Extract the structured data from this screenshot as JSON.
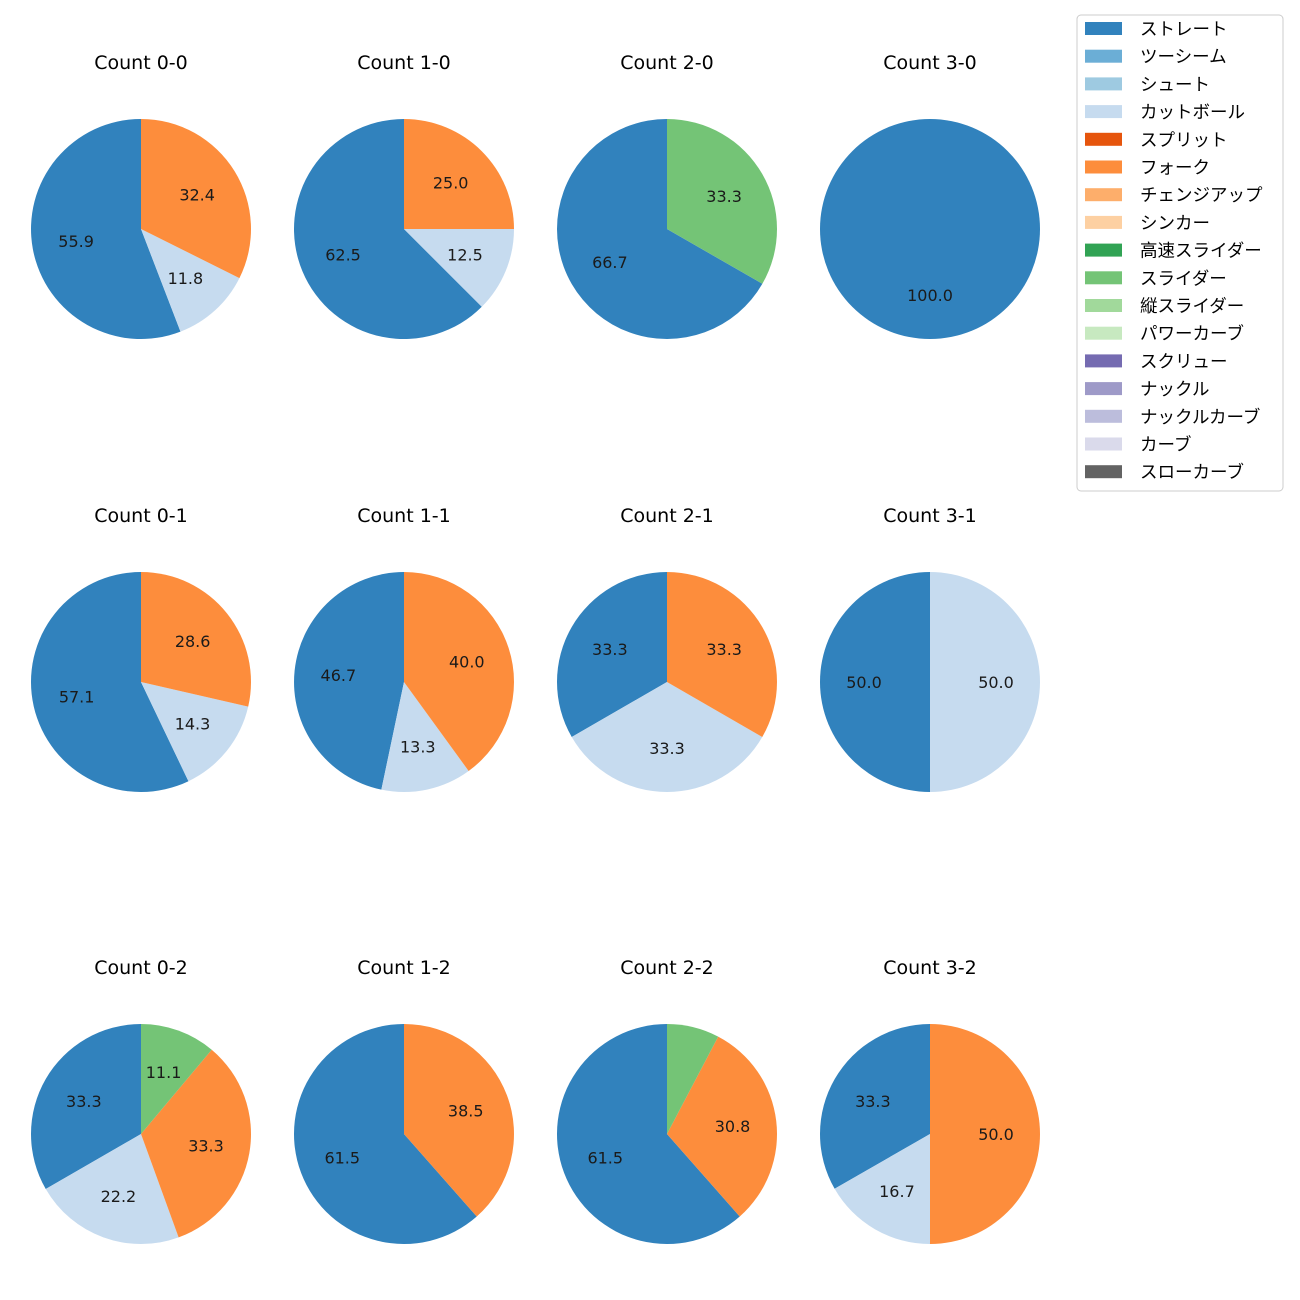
{
  "legend": {
    "items": [
      {
        "label": "ストレート",
        "color": "#3182bd"
      },
      {
        "label": "ツーシーム",
        "color": "#6baed6"
      },
      {
        "label": "シュート",
        "color": "#9ecae1"
      },
      {
        "label": "カットボール",
        "color": "#c6dbef"
      },
      {
        "label": "スプリット",
        "color": "#e6550d"
      },
      {
        "label": "フォーク",
        "color": "#fd8d3c"
      },
      {
        "label": "チェンジアップ",
        "color": "#fdae6b"
      },
      {
        "label": "シンカー",
        "color": "#fdd0a2"
      },
      {
        "label": "高速スライダー",
        "color": "#31a354"
      },
      {
        "label": "スライダー",
        "color": "#74c476"
      },
      {
        "label": "縦スライダー",
        "color": "#a1d99b"
      },
      {
        "label": "パワーカーブ",
        "color": "#c7e9c0"
      },
      {
        "label": "スクリュー",
        "color": "#756bb1"
      },
      {
        "label": "ナックル",
        "color": "#9e9ac8"
      },
      {
        "label": "ナックルカーブ",
        "color": "#bcbddc"
      },
      {
        "label": "カーブ",
        "color": "#dadaeb"
      },
      {
        "label": "スローカーブ",
        "color": "#636363"
      }
    ]
  },
  "chart_data": [
    {
      "type": "pie",
      "title": "Count 0-0",
      "slices": [
        {
          "pitch": "ストレート",
          "value": 55.9,
          "label": "55.9"
        },
        {
          "pitch": "カットボール",
          "value": 11.8,
          "label": "11.8"
        },
        {
          "pitch": "フォーク",
          "value": 32.4,
          "label": "32.4"
        }
      ]
    },
    {
      "type": "pie",
      "title": "Count 1-0",
      "slices": [
        {
          "pitch": "ストレート",
          "value": 62.5,
          "label": "62.5"
        },
        {
          "pitch": "カットボール",
          "value": 12.5,
          "label": "12.5"
        },
        {
          "pitch": "フォーク",
          "value": 25.0,
          "label": "25.0"
        }
      ]
    },
    {
      "type": "pie",
      "title": "Count 2-0",
      "slices": [
        {
          "pitch": "ストレート",
          "value": 66.7,
          "label": "66.7"
        },
        {
          "pitch": "スライダー",
          "value": 33.3,
          "label": "33.3"
        }
      ]
    },
    {
      "type": "pie",
      "title": "Count 3-0",
      "slices": [
        {
          "pitch": "ストレート",
          "value": 100.0,
          "label": "100.0"
        }
      ]
    },
    {
      "type": "pie",
      "title": "Count 0-1",
      "slices": [
        {
          "pitch": "ストレート",
          "value": 57.1,
          "label": "57.1"
        },
        {
          "pitch": "カットボール",
          "value": 14.3,
          "label": "14.3"
        },
        {
          "pitch": "フォーク",
          "value": 28.6,
          "label": "28.6"
        }
      ]
    },
    {
      "type": "pie",
      "title": "Count 1-1",
      "slices": [
        {
          "pitch": "ストレート",
          "value": 46.7,
          "label": "46.7"
        },
        {
          "pitch": "カットボール",
          "value": 13.3,
          "label": "13.3"
        },
        {
          "pitch": "フォーク",
          "value": 40.0,
          "label": "40.0"
        }
      ]
    },
    {
      "type": "pie",
      "title": "Count 2-1",
      "slices": [
        {
          "pitch": "ストレート",
          "value": 33.3,
          "label": "33.3"
        },
        {
          "pitch": "カットボール",
          "value": 33.3,
          "label": "33.3"
        },
        {
          "pitch": "フォーク",
          "value": 33.3,
          "label": "33.3"
        }
      ]
    },
    {
      "type": "pie",
      "title": "Count 3-1",
      "slices": [
        {
          "pitch": "ストレート",
          "value": 50.0,
          "label": "50.0"
        },
        {
          "pitch": "カットボール",
          "value": 50.0,
          "label": "50.0"
        }
      ]
    },
    {
      "type": "pie",
      "title": "Count 0-2",
      "slices": [
        {
          "pitch": "ストレート",
          "value": 33.3,
          "label": "33.3"
        },
        {
          "pitch": "カットボール",
          "value": 22.2,
          "label": "22.2"
        },
        {
          "pitch": "フォーク",
          "value": 33.3,
          "label": "33.3"
        },
        {
          "pitch": "スライダー",
          "value": 11.1,
          "label": "11.1"
        }
      ]
    },
    {
      "type": "pie",
      "title": "Count 1-2",
      "slices": [
        {
          "pitch": "ストレート",
          "value": 61.5,
          "label": "61.5"
        },
        {
          "pitch": "フォーク",
          "value": 38.5,
          "label": "38.5"
        }
      ]
    },
    {
      "type": "pie",
      "title": "Count 2-2",
      "slices": [
        {
          "pitch": "ストレート",
          "value": 61.5,
          "label": "61.5"
        },
        {
          "pitch": "フォーク",
          "value": 30.8,
          "label": "30.8"
        },
        {
          "pitch": "スライダー",
          "value": 7.7,
          "label": ""
        }
      ]
    },
    {
      "type": "pie",
      "title": "Count 3-2",
      "slices": [
        {
          "pitch": "ストレート",
          "value": 33.3,
          "label": "33.3"
        },
        {
          "pitch": "カットボール",
          "value": 16.7,
          "label": "16.7"
        },
        {
          "pitch": "フォーク",
          "value": 50.0,
          "label": "50.0"
        }
      ]
    }
  ]
}
